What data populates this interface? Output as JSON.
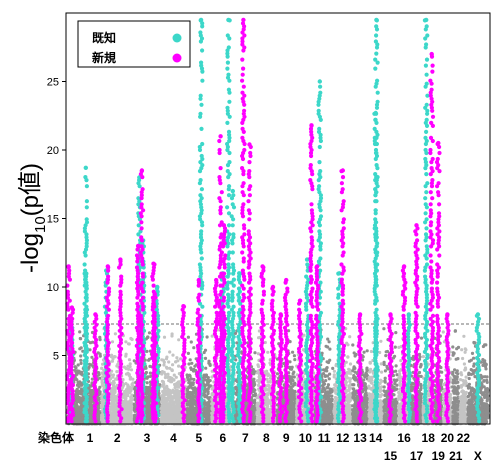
{
  "chart_data": {
    "type": "scatter",
    "subtype": "manhattan",
    "ylabel_parts": [
      "-log",
      "10",
      "(p値)"
    ],
    "xlabel_prefix": "染色体",
    "ylim": [
      0,
      30
    ],
    "yticks": [
      5,
      10,
      15,
      20,
      25
    ],
    "significance_threshold": 7.3,
    "grid": false,
    "legend_position": "top-left",
    "colors": {
      "known": "#3cd7c9",
      "novel": "#ff00ff",
      "background_a": "#8e8e8e",
      "background_b": "#c4c4c4",
      "threshold_line": "#707070"
    },
    "legend": [
      {
        "label": "既知",
        "key": "known"
      },
      {
        "label": "新規",
        "key": "novel"
      }
    ],
    "chromosomes": [
      {
        "label": "1",
        "size": 249,
        "row": 1
      },
      {
        "label": "2",
        "size": 243,
        "row": 1
      },
      {
        "label": "3",
        "size": 198,
        "row": 1
      },
      {
        "label": "4",
        "size": 191,
        "row": 1
      },
      {
        "label": "5",
        "size": 181,
        "row": 1
      },
      {
        "label": "6",
        "size": 171,
        "row": 1
      },
      {
        "label": "7",
        "size": 159,
        "row": 1
      },
      {
        "label": "8",
        "size": 146,
        "row": 1
      },
      {
        "label": "9",
        "size": 141,
        "row": 1
      },
      {
        "label": "10",
        "size": 136,
        "row": 1
      },
      {
        "label": "11",
        "size": 135,
        "row": 1
      },
      {
        "label": "12",
        "size": 134,
        "row": 1
      },
      {
        "label": "13",
        "size": 115,
        "row": 1
      },
      {
        "label": "14",
        "size": 107,
        "row": 1
      },
      {
        "label": "15",
        "size": 102,
        "row": 2
      },
      {
        "label": "16",
        "size": 90,
        "row": 1
      },
      {
        "label": "17",
        "size": 83,
        "row": 2
      },
      {
        "label": "18",
        "size": 78,
        "row": 1
      },
      {
        "label": "19",
        "size": 59,
        "row": 2
      },
      {
        "label": "20",
        "size": 63,
        "row": 1
      },
      {
        "label": "21",
        "size": 48,
        "row": 2
      },
      {
        "label": "22",
        "size": 51,
        "row": 1
      },
      {
        "label": "X",
        "size": 155,
        "row": 2
      }
    ],
    "series": [
      {
        "name": "既知",
        "key": "known",
        "points": [
          {
            "chr": "1",
            "pos": 0.1,
            "p": 7.5
          },
          {
            "chr": "1",
            "pos": 0.55,
            "p": 18.7
          },
          {
            "chr": "1",
            "pos": 0.55,
            "p": 11.0
          },
          {
            "chr": "2",
            "pos": 0.15,
            "p": 11.2
          },
          {
            "chr": "3",
            "pos": 0.2,
            "p": 18.0
          },
          {
            "chr": "3",
            "pos": 0.35,
            "p": 13.4
          },
          {
            "chr": "3",
            "pos": 0.9,
            "p": 10.0
          },
          {
            "chr": "5",
            "pos": 0.6,
            "p": 29.5
          },
          {
            "chr": "6",
            "pos": 0.5,
            "p": 11.0
          },
          {
            "chr": "6",
            "pos": 0.75,
            "p": 29.5
          },
          {
            "chr": "6",
            "pos": 0.95,
            "p": 17.0
          },
          {
            "chr": "7",
            "pos": 0.2,
            "p": 11.0
          },
          {
            "chr": "10",
            "pos": 0.6,
            "p": 12.0
          },
          {
            "chr": "11",
            "pos": 0.25,
            "p": 25.0
          },
          {
            "chr": "12",
            "pos": 0.3,
            "p": 11.0
          },
          {
            "chr": "14",
            "pos": 0.55,
            "p": 29.5
          },
          {
            "chr": "14",
            "pos": 0.5,
            "p": 22.7
          },
          {
            "chr": "16",
            "pos": 0.9,
            "p": 8.0
          },
          {
            "chr": "18",
            "pos": 0.3,
            "p": 29.5
          },
          {
            "chr": "X",
            "pos": 0.5,
            "p": 8.0
          }
        ]
      },
      {
        "name": "新規",
        "key": "novel",
        "points": [
          {
            "chr": "1",
            "pos": 0.02,
            "p": 11.5
          },
          {
            "chr": "1",
            "pos": 0.12,
            "p": 8.5
          },
          {
            "chr": "1",
            "pos": 0.85,
            "p": 8.0
          },
          {
            "chr": "2",
            "pos": 0.2,
            "p": 11.5
          },
          {
            "chr": "2",
            "pos": 0.6,
            "p": 12.0
          },
          {
            "chr": "3",
            "pos": 0.15,
            "p": 13.0
          },
          {
            "chr": "3",
            "pos": 0.3,
            "p": 18.5
          },
          {
            "chr": "3",
            "pos": 0.75,
            "p": 11.7
          },
          {
            "chr": "3",
            "pos": 0.8,
            "p": 9.5
          },
          {
            "chr": "4",
            "pos": 0.9,
            "p": 8.6
          },
          {
            "chr": "5",
            "pos": 0.5,
            "p": 10.5
          },
          {
            "chr": "6",
            "pos": 0.2,
            "p": 10.5
          },
          {
            "chr": "6",
            "pos": 0.4,
            "p": 21.0
          },
          {
            "chr": "6",
            "pos": 0.55,
            "p": 14.5
          },
          {
            "chr": "7",
            "pos": 0.4,
            "p": 29.5
          },
          {
            "chr": "7",
            "pos": 0.7,
            "p": 20.4
          },
          {
            "chr": "8",
            "pos": 0.3,
            "p": 11.5
          },
          {
            "chr": "8",
            "pos": 0.85,
            "p": 10.0
          },
          {
            "chr": "9",
            "pos": 0.2,
            "p": 8.0
          },
          {
            "chr": "9",
            "pos": 0.5,
            "p": 10.5
          },
          {
            "chr": "10",
            "pos": 0.2,
            "p": 9.0
          },
          {
            "chr": "10",
            "pos": 0.85,
            "p": 21.8
          },
          {
            "chr": "11",
            "pos": 0.1,
            "p": 11.5
          },
          {
            "chr": "12",
            "pos": 0.5,
            "p": 18.5
          },
          {
            "chr": "13",
            "pos": 0.5,
            "p": 8.0
          },
          {
            "chr": "15",
            "pos": 0.5,
            "p": 8.0
          },
          {
            "chr": "16",
            "pos": 0.5,
            "p": 11.5
          },
          {
            "chr": "17",
            "pos": 0.5,
            "p": 14.5
          },
          {
            "chr": "18",
            "pos": 0.85,
            "p": 27.0
          },
          {
            "chr": "19",
            "pos": 0.5,
            "p": 20.5
          },
          {
            "chr": "20",
            "pos": 0.5,
            "p": 8.0
          }
        ]
      }
    ]
  }
}
